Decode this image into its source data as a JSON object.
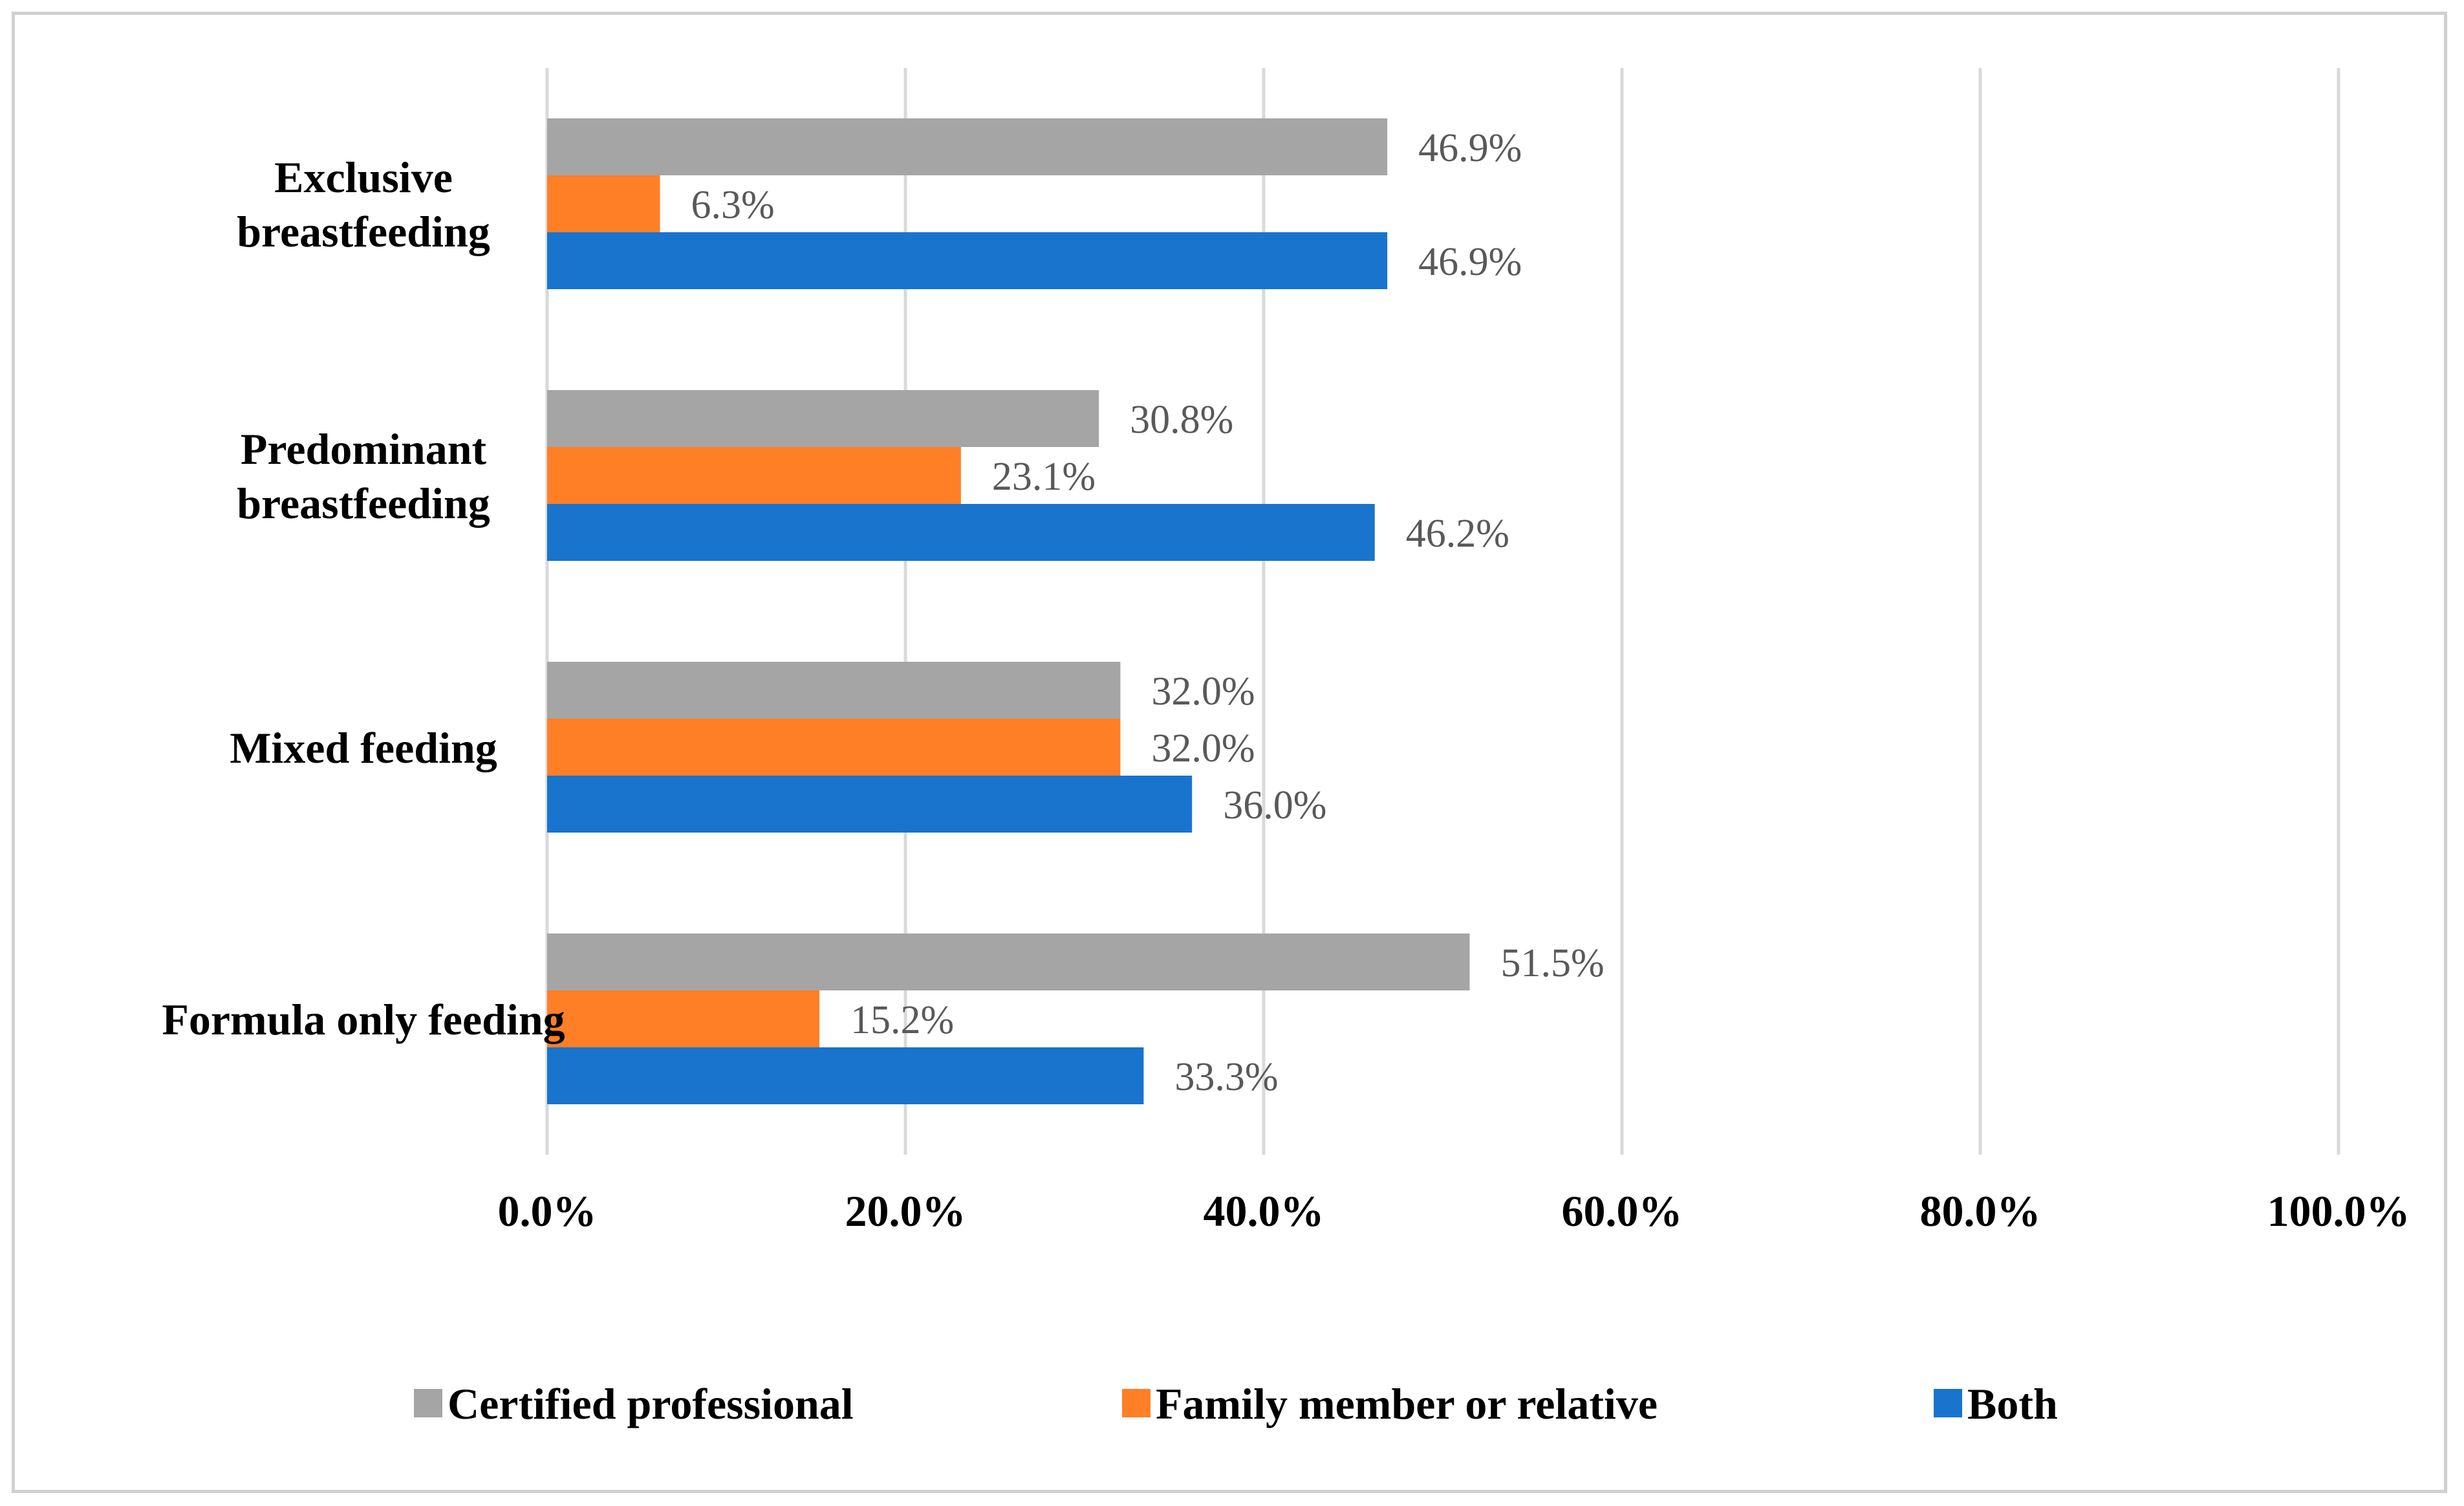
{
  "chart_data": {
    "type": "bar",
    "orientation": "horizontal",
    "categories": [
      [
        "Exclusive",
        "breastfeeding"
      ],
      [
        "Predominant",
        "breastfeeding"
      ],
      [
        "Mixed feeding"
      ],
      [
        "Formula only feeding"
      ]
    ],
    "series": [
      {
        "name": "Certified professional",
        "color": "#a5a5a5",
        "values": [
          46.9,
          30.8,
          32.0,
          51.5
        ],
        "labels": [
          "46.9%",
          "30.8%",
          "32.0%",
          "51.5%"
        ]
      },
      {
        "name": "Family member or relative",
        "color": "#ff7f27",
        "values": [
          6.3,
          23.1,
          32.0,
          15.2
        ],
        "labels": [
          "6.3%",
          "23.1%",
          "32.0%",
          "15.2%"
        ]
      },
      {
        "name": "Both",
        "color": "#1874cd",
        "values": [
          46.9,
          46.2,
          36.0,
          33.3
        ],
        "labels": [
          "46.9%",
          "46.2%",
          "36.0%",
          "33.3%"
        ]
      }
    ],
    "xlim": [
      0,
      100
    ],
    "xticks": [
      0,
      20,
      40,
      60,
      80,
      100
    ],
    "xtick_labels": [
      "0.0%",
      "20.0%",
      "40.0%",
      "60.0%",
      "80.0%",
      "100.0%"
    ],
    "grid": true,
    "legend_position": "bottom",
    "title": "",
    "xlabel": "",
    "ylabel": ""
  }
}
